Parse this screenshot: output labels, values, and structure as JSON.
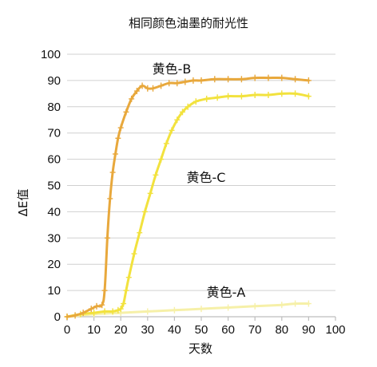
{
  "chart_data": {
    "type": "line",
    "title": "相同颜色油墨的耐光性",
    "xlabel": "天数",
    "ylabel": "ΔE值",
    "xlim": [
      0,
      100
    ],
    "ylim": [
      0,
      100
    ],
    "x_ticks": [
      "0",
      "10",
      "20",
      "30",
      "40",
      "50",
      "60",
      "70",
      "80",
      "90",
      "100"
    ],
    "y_ticks": [
      "0",
      "10",
      "20",
      "30",
      "40",
      "50",
      "60",
      "70",
      "80",
      "90",
      "100"
    ],
    "grid": "horizontal",
    "series": [
      {
        "name": "黄色-B",
        "color": "#e8a83c",
        "x": [
          0,
          3,
          6,
          9,
          11,
          13,
          14,
          15,
          16,
          17,
          18,
          19,
          20,
          22,
          24,
          26,
          28,
          30,
          32,
          35,
          38,
          41,
          44,
          47,
          50,
          55,
          60,
          65,
          70,
          75,
          80,
          85,
          90
        ],
        "y": [
          0,
          0.5,
          1.5,
          3,
          4,
          4.5,
          10,
          30,
          45,
          55,
          62,
          68,
          72,
          78,
          83,
          86,
          88,
          87,
          87,
          88,
          89,
          89,
          89.5,
          90,
          90,
          90.5,
          90.5,
          90.5,
          91,
          91,
          91,
          90.5,
          90
        ]
      },
      {
        "name": "黄色-C",
        "color": "#f2e23e",
        "x": [
          0,
          5,
          10,
          14,
          17,
          19,
          20,
          21,
          22,
          23,
          25,
          27,
          29,
          31,
          33,
          35,
          37,
          39,
          41,
          43,
          45,
          48,
          52,
          56,
          60,
          65,
          70,
          75,
          80,
          85,
          90
        ],
        "y": [
          0,
          1,
          1.5,
          2,
          2,
          2.5,
          3,
          5,
          10,
          15,
          24,
          32,
          40,
          47,
          54,
          60,
          66,
          71,
          75,
          78,
          80,
          82,
          83,
          83.5,
          84,
          84,
          84.5,
          84.5,
          85,
          85,
          84
        ]
      },
      {
        "name": "黄色-A",
        "color": "#f6f0a8",
        "x": [
          0,
          10,
          20,
          30,
          40,
          50,
          60,
          70,
          80,
          85,
          90
        ],
        "y": [
          0,
          1,
          1.5,
          2,
          2.5,
          3,
          3.5,
          4,
          4.5,
          5,
          5
        ]
      }
    ]
  }
}
